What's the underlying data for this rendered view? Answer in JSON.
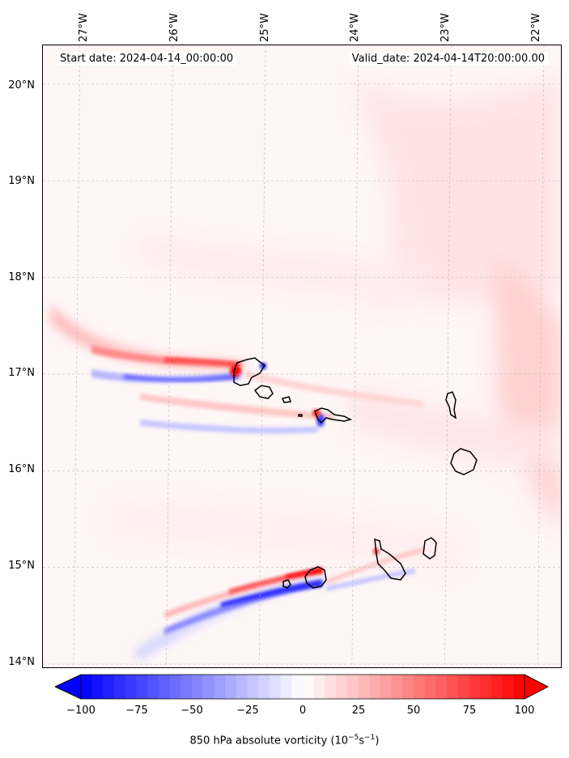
{
  "map": {
    "start_date": "Start date: 2024-04-14_00:00:00",
    "valid_date": "Valid_date: 2024-04-14T20:00:00.00",
    "lon_labels": [
      "27°W",
      "26°W",
      "25°W",
      "24°W",
      "23°W",
      "22°W"
    ],
    "lat_labels": [
      "20°N",
      "19°N",
      "18°N",
      "17°N",
      "16°N",
      "15°N",
      "14°N"
    ],
    "lon_values": [
      -27,
      -26,
      -25,
      -24,
      -23,
      -22
    ],
    "lat_values": [
      20,
      19,
      18,
      17,
      16,
      15,
      14
    ],
    "lon_range": [
      -27.4,
      -21.8
    ],
    "lat_range": [
      13.95,
      20.4
    ]
  },
  "colorbar": {
    "ticks": [
      "−100",
      "−75",
      "−50",
      "−25",
      "0",
      "25",
      "50",
      "75",
      "100"
    ],
    "tick_values": [
      -100,
      -75,
      -50,
      -25,
      0,
      25,
      50,
      75,
      100
    ],
    "label_main": "850 hPa absolute vorticity (10",
    "label_exp1": "−5",
    "label_mid": "s",
    "label_exp2": "−1",
    "label_end": ")",
    "cmap": "bwr",
    "range": [
      -100,
      100
    ],
    "extend": "both"
  },
  "colors": {
    "positive": "#ff0000",
    "negative": "#0000ff",
    "neutral": "#ffffff"
  },
  "islands": [
    "Santo Antão",
    "São Vicente",
    "Santa Luzia",
    "São Nicolau",
    "Sal",
    "Boa Vista",
    "Santiago",
    "Maio",
    "Fogo",
    "Brava"
  ]
}
